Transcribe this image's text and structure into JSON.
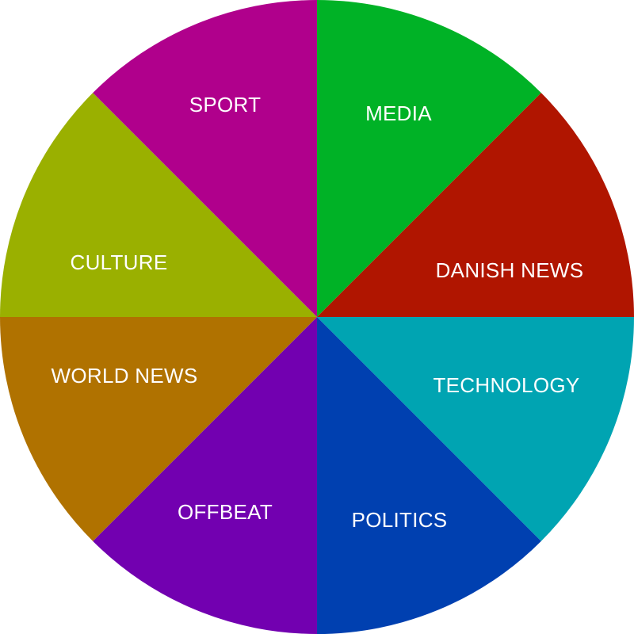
{
  "wheel": {
    "segments": [
      {
        "label": "MEDIA",
        "color": "#00b226"
      },
      {
        "label": "DANISH NEWS",
        "color": "#b01500"
      },
      {
        "label": "TECHNOLOGY",
        "color": "#00a4b2"
      },
      {
        "label": "POLITICS",
        "color": "#0040b0"
      },
      {
        "label": "OFFBEAT",
        "color": "#7200b0"
      },
      {
        "label": "WORLD NEWS",
        "color": "#b07200"
      },
      {
        "label": "CULTURE",
        "color": "#9ab000"
      },
      {
        "label": "SPORT",
        "color": "#b0008c"
      }
    ]
  }
}
